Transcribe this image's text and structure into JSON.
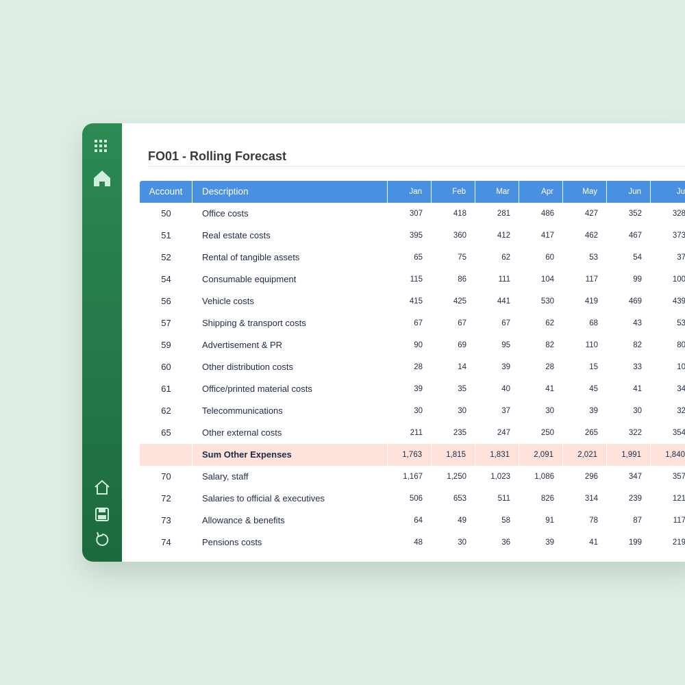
{
  "header": {
    "title": "FO01 - Rolling Forecast"
  },
  "table": {
    "columns": [
      "Account",
      "Description",
      "Jan",
      "Feb",
      "Mar",
      "Apr",
      "May",
      "Jun",
      "Ju"
    ],
    "rows": [
      {
        "account": "50",
        "description": "Office costs",
        "values": [
          "307",
          "418",
          "281",
          "486",
          "427",
          "352",
          "328"
        ]
      },
      {
        "account": "51",
        "description": "Real estate costs",
        "values": [
          "395",
          "360",
          "412",
          "417",
          "462",
          "467",
          "373"
        ]
      },
      {
        "account": "52",
        "description": "Rental of tangible assets",
        "values": [
          "65",
          "75",
          "62",
          "60",
          "53",
          "54",
          "37"
        ]
      },
      {
        "account": "54",
        "description": "Consumable equipment",
        "values": [
          "115",
          "86",
          "111",
          "104",
          "117",
          "99",
          "100"
        ]
      },
      {
        "account": "56",
        "description": "Vehicle costs",
        "values": [
          "415",
          "425",
          "441",
          "530",
          "419",
          "469",
          "439"
        ]
      },
      {
        "account": "57",
        "description": "Shipping & transport costs",
        "values": [
          "67",
          "67",
          "67",
          "62",
          "68",
          "43",
          "53"
        ]
      },
      {
        "account": "59",
        "description": "Advertisement & PR",
        "values": [
          "90",
          "69",
          "95",
          "82",
          "110",
          "82",
          "80"
        ]
      },
      {
        "account": "60",
        "description": "Other distribution costs",
        "values": [
          "28",
          "14",
          "39",
          "28",
          "15",
          "33",
          "10"
        ]
      },
      {
        "account": "61",
        "description": "Office/printed material costs",
        "values": [
          "39",
          "35",
          "40",
          "41",
          "45",
          "41",
          "34"
        ]
      },
      {
        "account": "62",
        "description": "Telecommunications",
        "values": [
          "30",
          "30",
          "37",
          "30",
          "39",
          "30",
          "32"
        ]
      },
      {
        "account": "65",
        "description": "Other external costs",
        "values": [
          "211",
          "235",
          "247",
          "250",
          "265",
          "322",
          "354"
        ]
      },
      {
        "description": "Sum Other Expenses",
        "values": [
          "1,763",
          "1,815",
          "1,831",
          "2,091",
          "2,021",
          "1,991",
          "1,840"
        ]
      },
      {
        "account": "70",
        "description": "Salary, staff",
        "values": [
          "1,167",
          "1,250",
          "1,023",
          "1,086",
          "296",
          "347",
          "357"
        ]
      },
      {
        "account": "72",
        "description": "Salaries to official & executives",
        "values": [
          "506",
          "653",
          "511",
          "826",
          "314",
          "239",
          "121"
        ]
      },
      {
        "account": "73",
        "description": "Allowance & benefits",
        "values": [
          "64",
          "49",
          "58",
          "91",
          "78",
          "87",
          "117"
        ]
      },
      {
        "account": "74",
        "description": "Pensions costs",
        "values": [
          "48",
          "30",
          "36",
          "39",
          "41",
          "199",
          "219"
        ]
      }
    ]
  }
}
